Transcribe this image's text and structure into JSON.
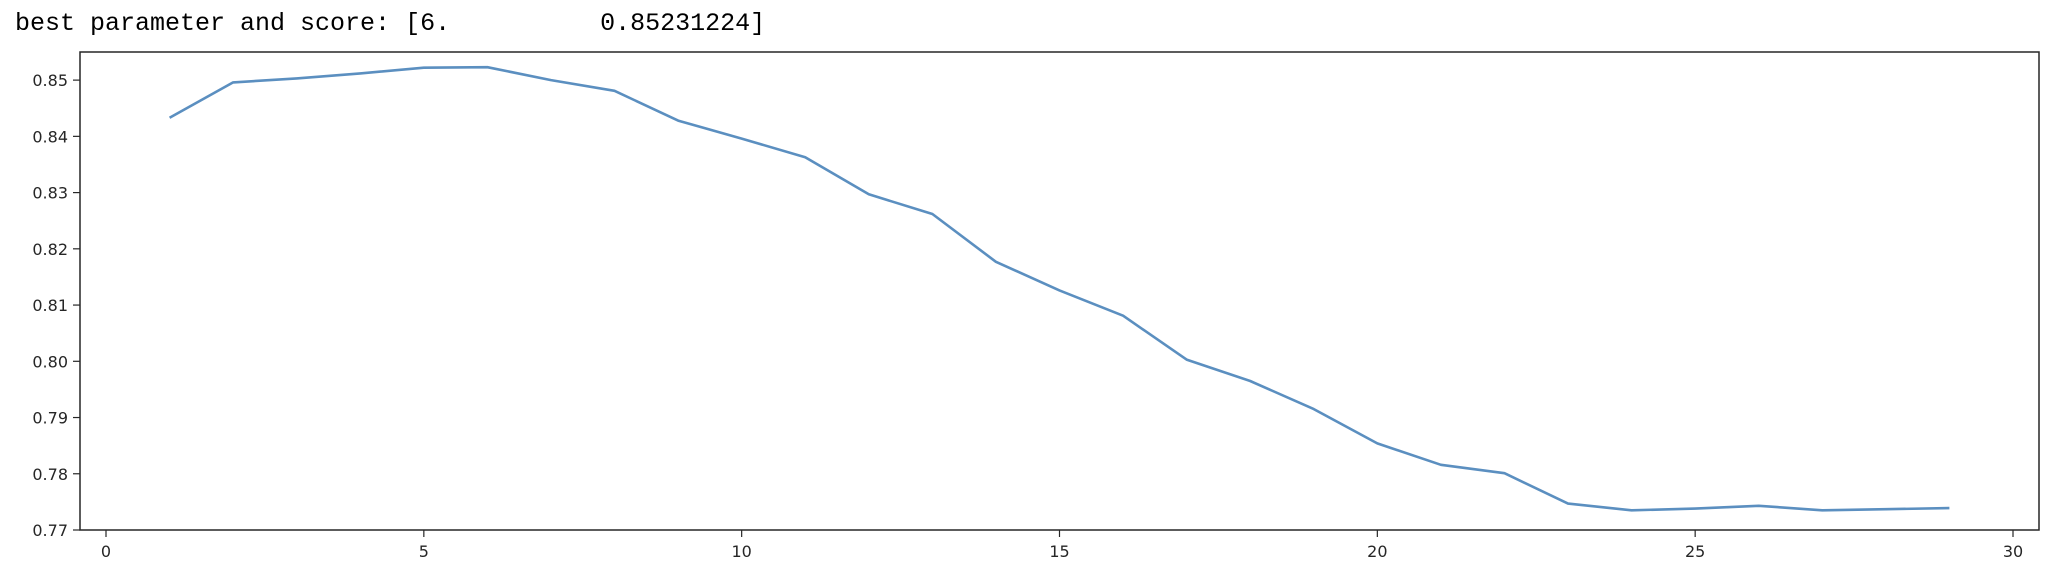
{
  "output": {
    "prefix": "best parameter and score: [6.",
    "value": "0.85231224]"
  },
  "chart_data": {
    "type": "line",
    "title": "",
    "xlabel": "",
    "ylabel": "",
    "xlim": [
      0,
      30
    ],
    "ylim": [
      0.77,
      0.855
    ],
    "grid": false,
    "x_ticks": [
      0,
      5,
      10,
      15,
      20,
      25,
      30
    ],
    "y_ticks": [
      0.77,
      0.78,
      0.79,
      0.8,
      0.81,
      0.82,
      0.83,
      0.84,
      0.85
    ],
    "x_tick_labels": [
      "0",
      "5",
      "10",
      "15",
      "20",
      "25",
      "30"
    ],
    "y_tick_labels": [
      "0.77",
      "0.78",
      "0.79",
      "0.80",
      "0.81",
      "0.82",
      "0.83",
      "0.84",
      "0.85"
    ],
    "line_color": "#5b8fc0",
    "series": [
      {
        "x": [
          1,
          2,
          3,
          4,
          5,
          6,
          7,
          8,
          9,
          10,
          11,
          12,
          13,
          14,
          15,
          16,
          17,
          18,
          19,
          20,
          21,
          22,
          23,
          24,
          25,
          26,
          27,
          28,
          29
        ],
        "values": [
          0.8433,
          0.8496,
          0.8503,
          0.8512,
          0.8522,
          0.8523,
          0.85,
          0.8481,
          0.8428,
          0.8396,
          0.8363,
          0.8297,
          0.8262,
          0.8177,
          0.8126,
          0.8081,
          0.8003,
          0.7965,
          0.7915,
          0.7854,
          0.7816,
          0.7801,
          0.7747,
          0.7735,
          0.7738,
          0.7743,
          0.7735,
          0.7737,
          0.7739
        ]
      }
    ]
  }
}
